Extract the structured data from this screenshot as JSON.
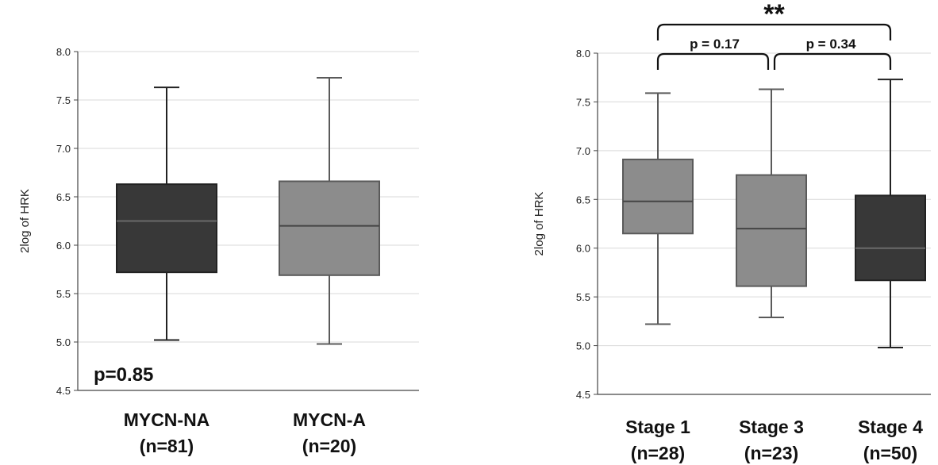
{
  "chart_data": [
    {
      "type": "box",
      "ylabel": "2log of HRK",
      "ylim": [
        4.5,
        8.0
      ],
      "yticks": [
        "4.5",
        "5.0",
        "5.5",
        "6.0",
        "6.5",
        "7.0",
        "7.5",
        "8.0"
      ],
      "grid": true,
      "categories": [
        {
          "name": "MYCN-NA",
          "n": "(n=81)"
        },
        {
          "name": "MYCN-A",
          "n": "(n=20)"
        }
      ],
      "boxes": [
        {
          "min": 5.02,
          "q1": 5.72,
          "median": 6.25,
          "q3": 6.63,
          "max": 7.63,
          "color": "#383838"
        },
        {
          "min": 4.98,
          "q1": 5.69,
          "median": 6.2,
          "q3": 6.66,
          "max": 7.73,
          "color": "#8c8c8c"
        }
      ],
      "annotation": "p=0.85"
    },
    {
      "type": "box",
      "ylabel": "2log of HRK",
      "ylim": [
        4.5,
        8.0
      ],
      "yticks": [
        "4.5",
        "5.0",
        "5.5",
        "6.0",
        "6.5",
        "7.0",
        "7.5",
        "8.0"
      ],
      "grid": true,
      "categories": [
        {
          "name": "Stage 1",
          "n": "(n=28)"
        },
        {
          "name": "Stage 3",
          "n": "(n=23)"
        },
        {
          "name": "Stage 4",
          "n": "(n=50)"
        }
      ],
      "boxes": [
        {
          "min": 5.22,
          "q1": 6.15,
          "median": 6.48,
          "q3": 6.91,
          "max": 7.59,
          "color": "#8c8c8c"
        },
        {
          "min": 5.29,
          "q1": 5.61,
          "median": 6.2,
          "q3": 6.75,
          "max": 7.63,
          "color": "#8c8c8c"
        },
        {
          "min": 4.98,
          "q1": 5.67,
          "median": 6.0,
          "q3": 6.54,
          "max": 7.73,
          "color": "#383838"
        }
      ],
      "comparisons": [
        {
          "from": 0,
          "to": 1,
          "label": "p = 0.17"
        },
        {
          "from": 1,
          "to": 2,
          "label": "p = 0.34"
        },
        {
          "from": 0,
          "to": 2,
          "label": "**"
        }
      ]
    }
  ]
}
